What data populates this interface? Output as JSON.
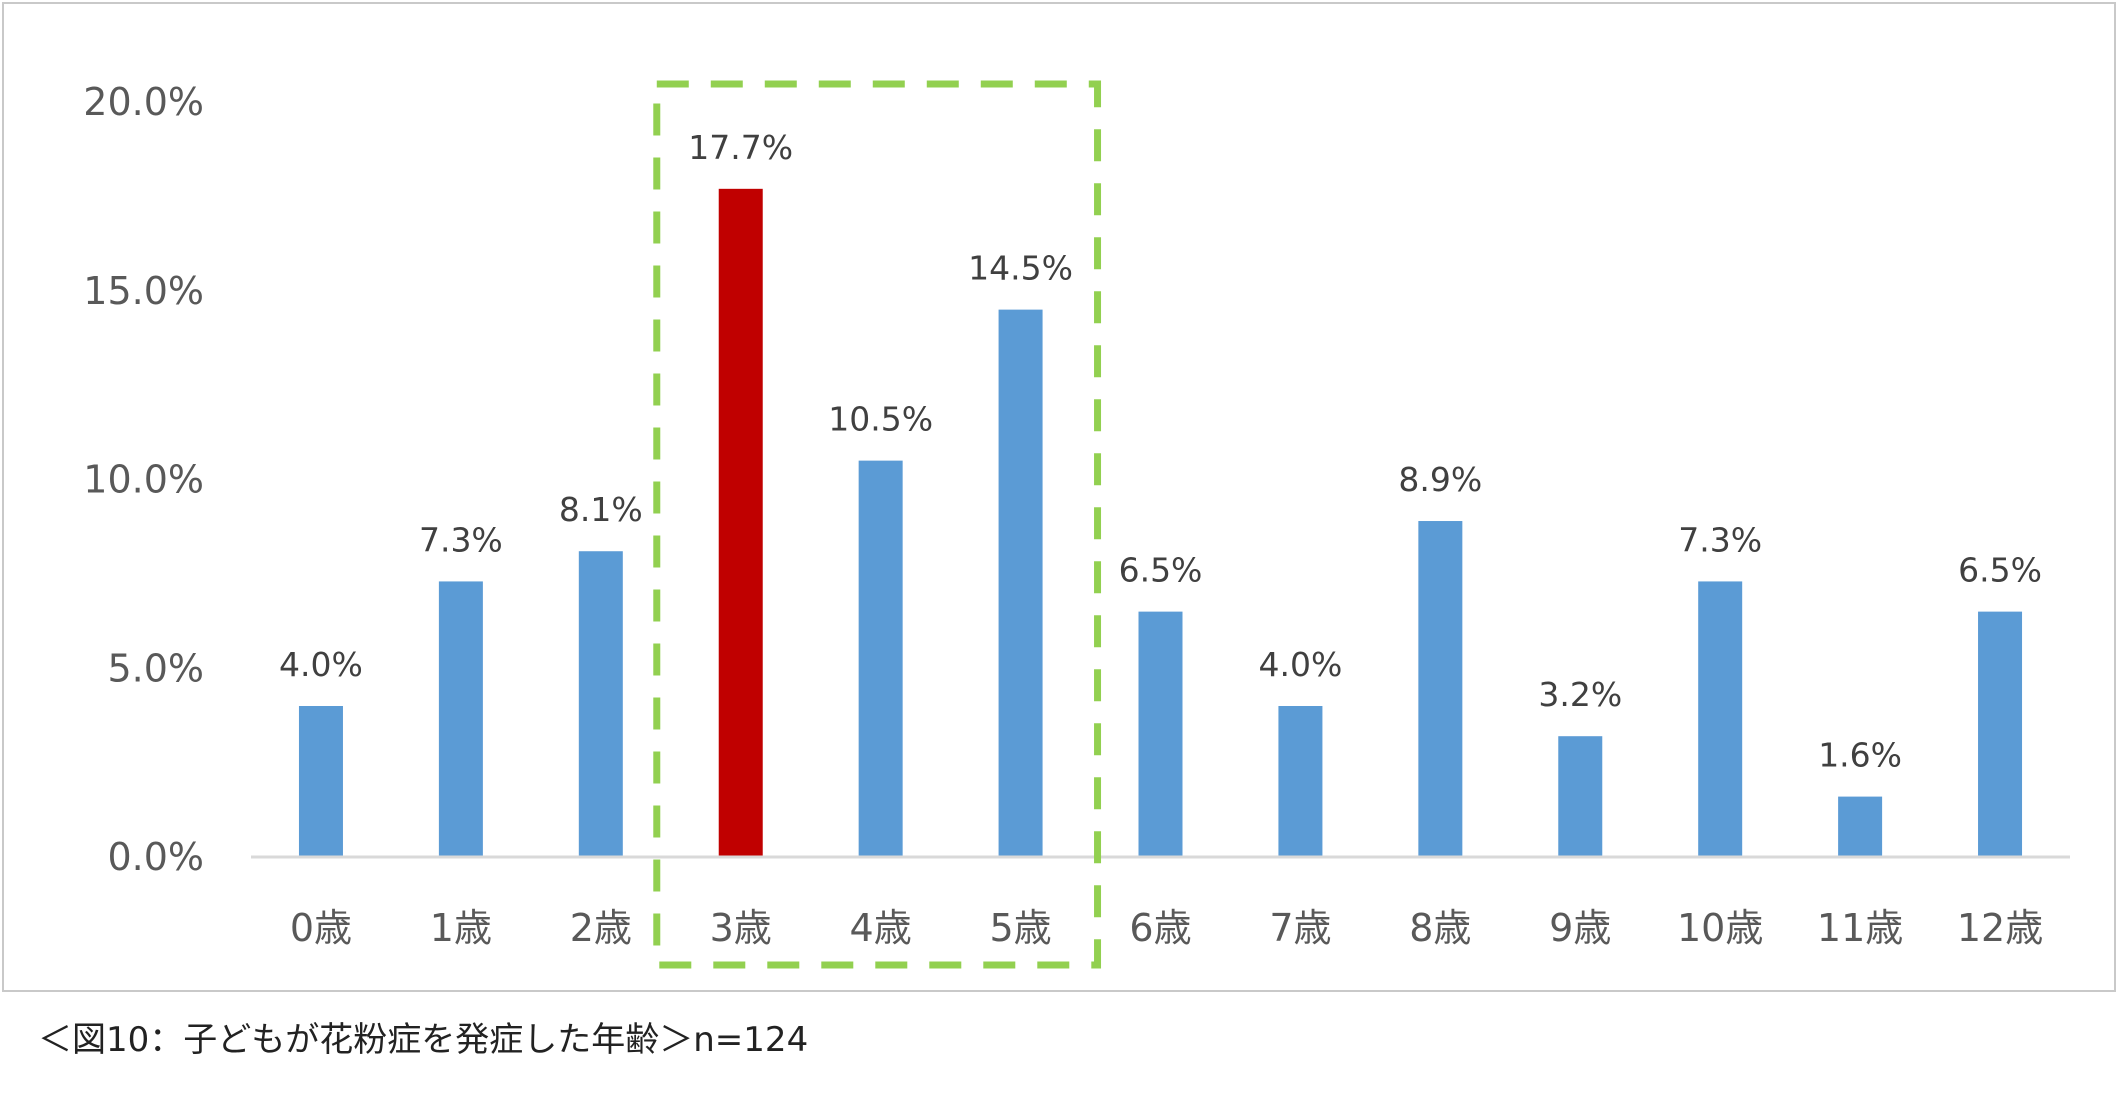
{
  "chart_data": {
    "type": "bar",
    "categories": [
      "0歳",
      "1歳",
      "2歳",
      "3歳",
      "4歳",
      "5歳",
      "6歳",
      "7歳",
      "8歳",
      "9歳",
      "10歳",
      "11歳",
      "12歳"
    ],
    "values": [
      4.0,
      7.3,
      8.1,
      17.7,
      10.5,
      14.5,
      6.5,
      4.0,
      8.9,
      3.2,
      7.3,
      1.6,
      6.5
    ],
    "data_labels": [
      "4.0%",
      "7.3%",
      "8.1%",
      "17.7%",
      "10.5%",
      "14.5%",
      "6.5%",
      "4.0%",
      "8.9%",
      "3.2%",
      "7.3%",
      "1.6%",
      "6.5%"
    ],
    "yticks": [
      "0.0%",
      "5.0%",
      "10.0%",
      "15.0%",
      "20.0%"
    ],
    "ytick_values": [
      0,
      5,
      10,
      15,
      20
    ],
    "ylim": [
      0,
      20
    ],
    "title": "",
    "xlabel": "",
    "ylabel": "",
    "grid": false,
    "legend": "none",
    "bar_color": "#5b9bd5",
    "highlight_color": "#c00000",
    "highlight_index": 3,
    "highlight_box": {
      "from_index": 3,
      "to_index": 5,
      "stroke_color": "#92d050"
    }
  },
  "caption": "＜図10：子どもが花粉症を発症した年齢＞n=124"
}
